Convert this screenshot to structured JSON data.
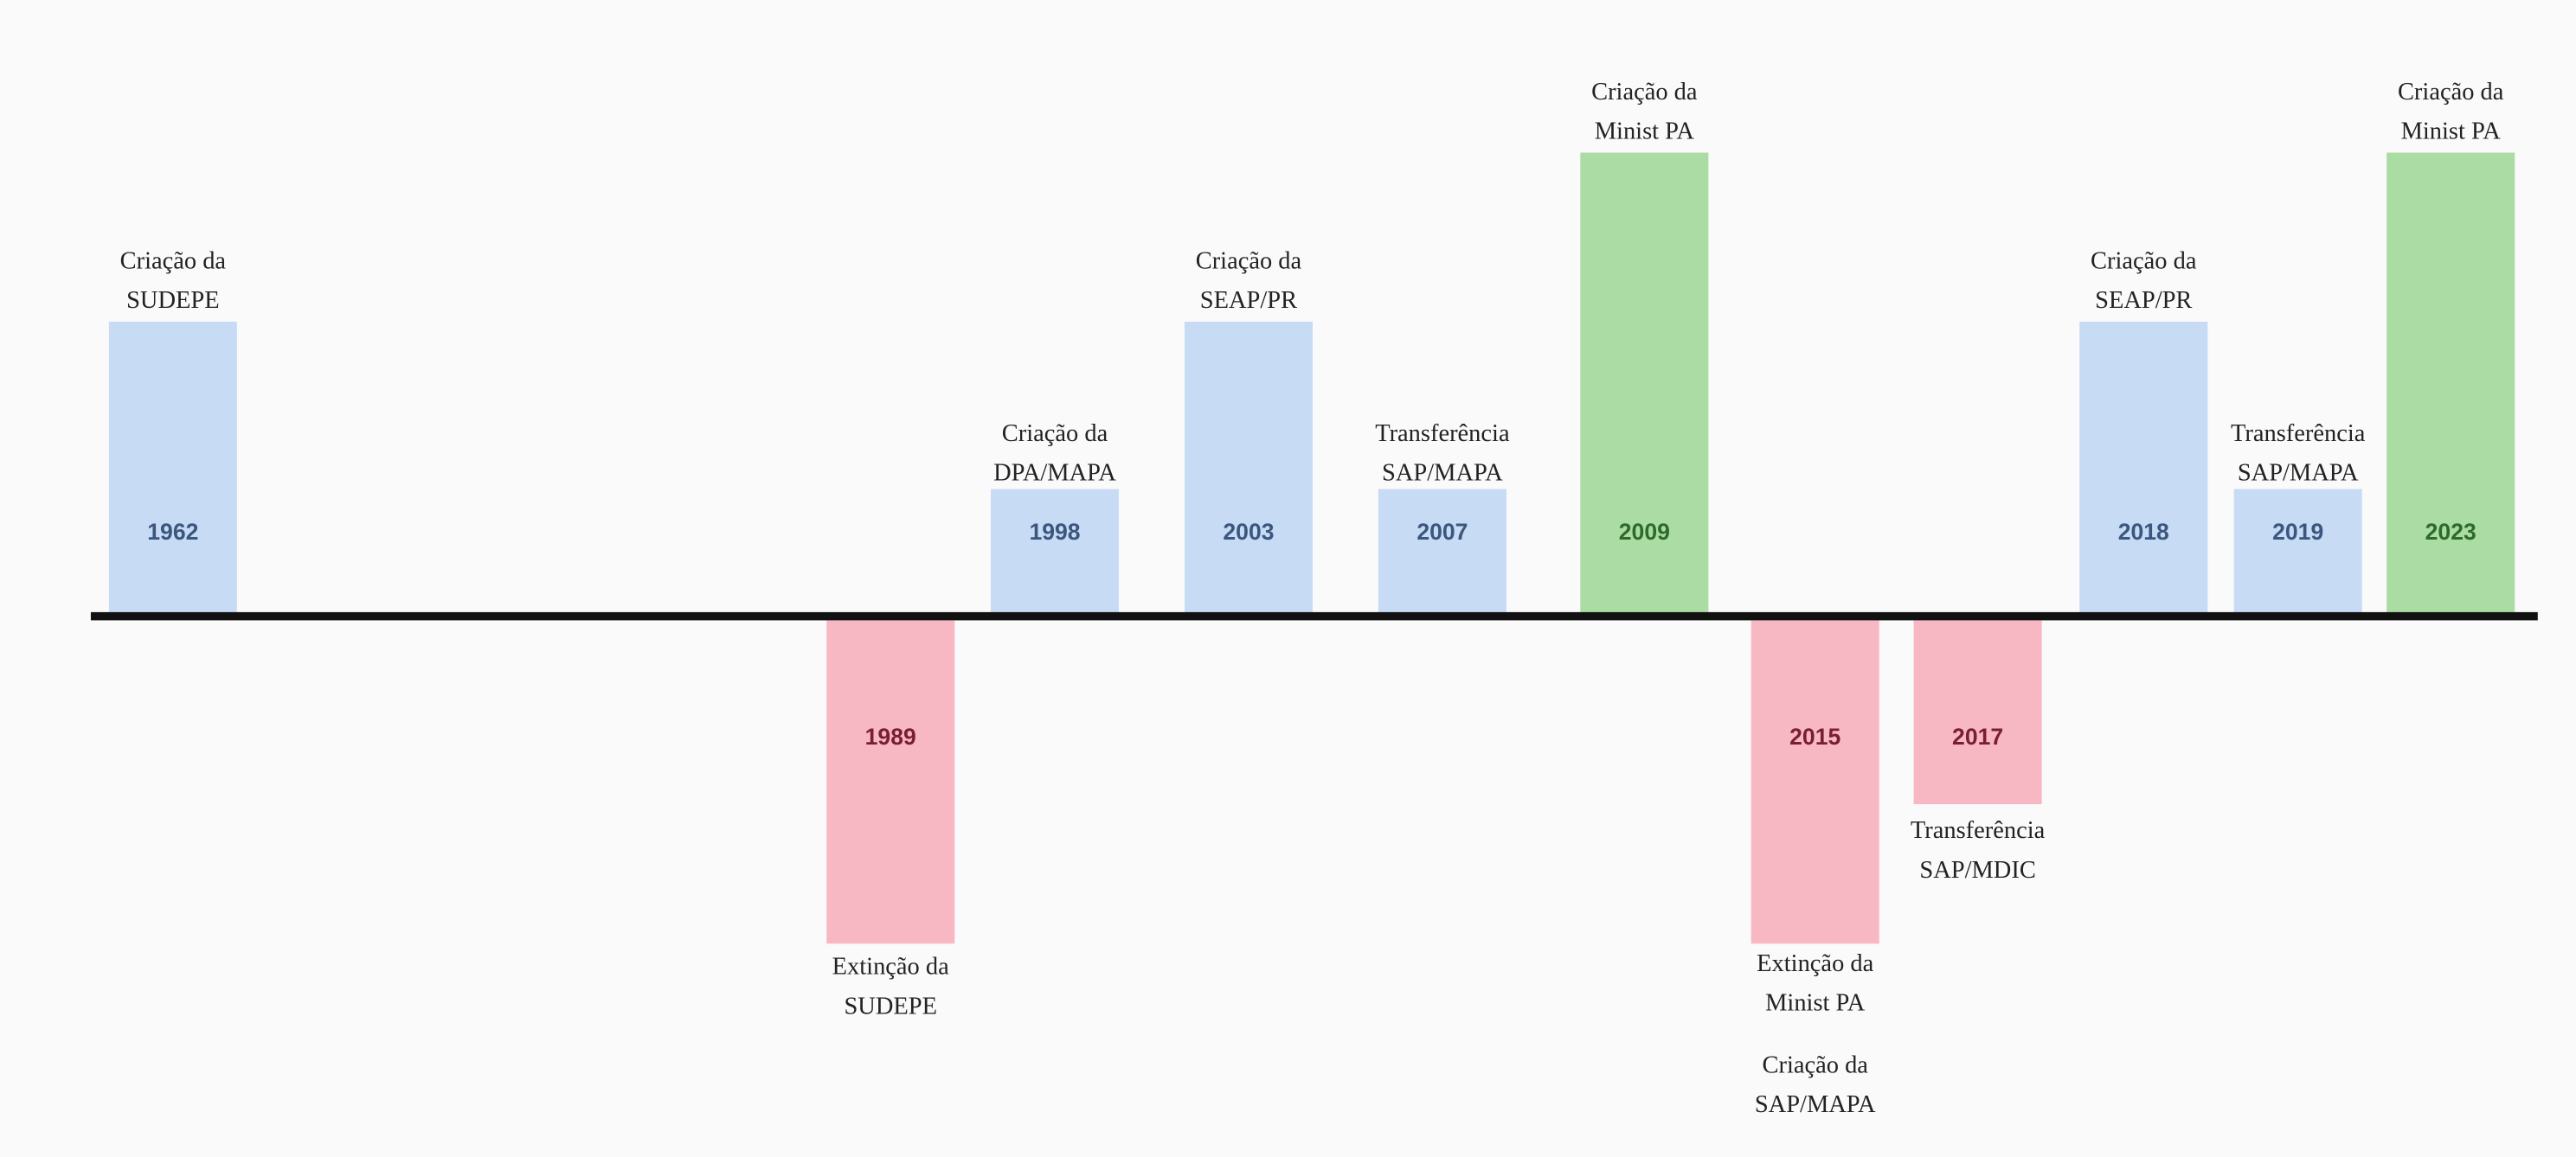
{
  "events": [
    {
      "year": "1962",
      "labels": [
        [
          "Criação da",
          "SUDEPE"
        ]
      ]
    },
    {
      "year": "1989",
      "labels": [
        [
          "Extinção da",
          "SUDEPE"
        ]
      ]
    },
    {
      "year": "1998",
      "labels": [
        [
          "Criação da",
          "DPA/MAPA"
        ]
      ]
    },
    {
      "year": "2003",
      "labels": [
        [
          "Criação da",
          "SEAP/PR"
        ]
      ]
    },
    {
      "year": "2007",
      "labels": [
        [
          "Transferência",
          "SAP/MAPA"
        ]
      ]
    },
    {
      "year": "2009",
      "labels": [
        [
          "Criação da",
          "Minist PA"
        ]
      ]
    },
    {
      "year": "2015",
      "labels": [
        [
          "Extinção da",
          "Minist PA"
        ],
        [
          "Criação da",
          "SAP/MAPA"
        ]
      ]
    },
    {
      "year": "2017",
      "labels": [
        [
          "Transferência",
          "SAP/MDIC"
        ]
      ]
    },
    {
      "year": "2018",
      "labels": [
        [
          "Criação da",
          "SEAP/PR"
        ]
      ]
    },
    {
      "year": "2019",
      "labels": [
        [
          "Transferência",
          "SAP/MAPA"
        ]
      ]
    },
    {
      "year": "2023",
      "labels": [
        [
          "Criação da",
          "Minist PA"
        ]
      ]
    }
  ]
}
